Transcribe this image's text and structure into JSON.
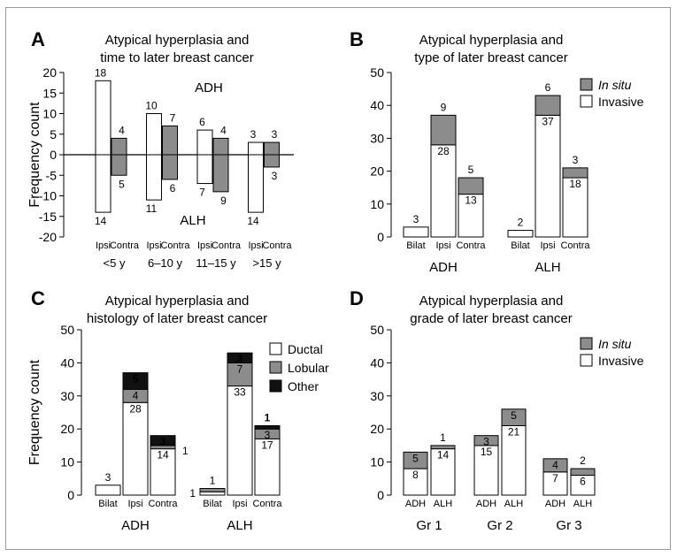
{
  "colors": {
    "invasive": "#ffffff",
    "in_situ": "#8c8c8c",
    "lobular": "#8c8c8c",
    "other": "#111111",
    "ductal": "#ffffff",
    "contra": "#8c8c8c",
    "ipsi": "#ffffff"
  },
  "chart_data": [
    {
      "panel": "A",
      "type": "bar",
      "title": [
        "Atypical hyperplasia and",
        "time to later breast cancer"
      ],
      "ylabel": "Frequency count",
      "ylim": [
        -20,
        20
      ],
      "yticks": [
        -20,
        -15,
        -10,
        -5,
        0,
        5,
        10,
        15,
        20
      ],
      "upper_label": "ADH",
      "lower_label": "ALH",
      "bar_labels": [
        "Ipsi",
        "Contra"
      ],
      "groups": [
        {
          "label": "<5 y",
          "ipsi_adh": 18,
          "contra_adh": 4,
          "ipsi_alh": 14,
          "contra_alh": 5
        },
        {
          "label": "6–10 y",
          "ipsi_adh": 10,
          "contra_adh": 7,
          "ipsi_alh": 11,
          "contra_alh": 6
        },
        {
          "label": "11–15 y",
          "ipsi_adh": 6,
          "contra_adh": 4,
          "ipsi_alh": 7,
          "contra_alh": 9
        },
        {
          "label": ">15 y",
          "ipsi_adh": 3,
          "contra_adh": 3,
          "ipsi_alh": 14,
          "contra_alh": 3
        }
      ]
    },
    {
      "panel": "B",
      "type": "bar",
      "stacked": true,
      "title": [
        "Atypical hyperplasia and",
        "type of later breast cancer"
      ],
      "ylim": [
        0,
        50
      ],
      "yticks": [
        0,
        10,
        20,
        30,
        40,
        50
      ],
      "legend_position": "top-right",
      "legend": [
        {
          "name": "In situ",
          "italic": true,
          "color_key": "in_situ"
        },
        {
          "name": "Invasive",
          "italic": false,
          "color_key": "invasive"
        }
      ],
      "groups": [
        {
          "label": "ADH",
          "bars": [
            {
              "label": "Bilat",
              "segments": [
                {
                  "series": "Invasive",
                  "value": 3,
                  "color_key": "invasive",
                  "label": "3",
                  "label_pos": "above"
                }
              ]
            },
            {
              "label": "Ipsi",
              "segments": [
                {
                  "series": "Invasive",
                  "value": 28,
                  "color_key": "invasive",
                  "label": "28",
                  "label_pos": "inside"
                },
                {
                  "series": "In situ",
                  "value": 9,
                  "color_key": "in_situ",
                  "label": "9",
                  "label_pos": "above"
                }
              ]
            },
            {
              "label": "Contra",
              "segments": [
                {
                  "series": "Invasive",
                  "value": 13,
                  "color_key": "invasive",
                  "label": "13",
                  "label_pos": "inside"
                },
                {
                  "series": "In situ",
                  "value": 5,
                  "color_key": "in_situ",
                  "label": "5",
                  "label_pos": "above"
                }
              ]
            }
          ]
        },
        {
          "label": "ALH",
          "bars": [
            {
              "label": "Bilat",
              "segments": [
                {
                  "series": "Invasive",
                  "value": 2,
                  "color_key": "invasive",
                  "label": "2",
                  "label_pos": "above"
                }
              ]
            },
            {
              "label": "Ipsi",
              "segments": [
                {
                  "series": "Invasive",
                  "value": 37,
                  "color_key": "invasive",
                  "label": "37",
                  "label_pos": "inside"
                },
                {
                  "series": "In situ",
                  "value": 6,
                  "color_key": "in_situ",
                  "label": "6",
                  "label_pos": "above"
                }
              ]
            },
            {
              "label": "Contra",
              "segments": [
                {
                  "series": "Invasive",
                  "value": 18,
                  "color_key": "invasive",
                  "label": "18",
                  "label_pos": "inside"
                },
                {
                  "series": "In situ",
                  "value": 3,
                  "color_key": "in_situ",
                  "label": "3",
                  "label_pos": "above"
                }
              ]
            }
          ]
        }
      ]
    },
    {
      "panel": "C",
      "type": "bar",
      "stacked": true,
      "title": [
        "Atypical hyperplasia and",
        "histology of later breast cancer"
      ],
      "ylabel": "Frequency count",
      "ylim": [
        0,
        50
      ],
      "yticks": [
        0,
        10,
        20,
        30,
        40,
        50
      ],
      "legend_position": "top-right",
      "legend": [
        {
          "name": "Ductal",
          "italic": false,
          "color_key": "ductal"
        },
        {
          "name": "Lobular",
          "italic": false,
          "color_key": "lobular"
        },
        {
          "name": "Other",
          "italic": false,
          "color_key": "other"
        }
      ],
      "groups": [
        {
          "label": "ADH",
          "bars": [
            {
              "label": "Bilat",
              "segments": [
                {
                  "series": "Ductal",
                  "value": 3,
                  "color_key": "ductal",
                  "label": "3",
                  "label_pos": "above"
                }
              ]
            },
            {
              "label": "Ipsi",
              "segments": [
                {
                  "series": "Ductal",
                  "value": 28,
                  "color_key": "ductal",
                  "label": "28",
                  "label_pos": "inside"
                },
                {
                  "series": "Lobular",
                  "value": 4,
                  "color_key": "lobular",
                  "label": "4",
                  "label_pos": "inside"
                },
                {
                  "series": "Other",
                  "value": 5,
                  "color_key": "other",
                  "label": "5",
                  "label_pos": "inside"
                }
              ]
            },
            {
              "label": "Contra",
              "segments": [
                {
                  "series": "Ductal",
                  "value": 14,
                  "color_key": "ductal",
                  "label": "14",
                  "label_pos": "inside"
                },
                {
                  "series": "Lobular",
                  "value": 1,
                  "color_key": "lobular",
                  "label": "1",
                  "label_pos": "right"
                },
                {
                  "series": "Other",
                  "value": 3,
                  "color_key": "other",
                  "label": "3",
                  "label_pos": "inside"
                }
              ]
            }
          ]
        },
        {
          "label": "ALH",
          "bars": [
            {
              "label": "Bilat",
              "segments": [
                {
                  "series": "Ductal",
                  "value": 1,
                  "color_key": "ductal",
                  "label": "1",
                  "label_pos": "left"
                },
                {
                  "series": "Lobular",
                  "value": 1,
                  "color_key": "lobular",
                  "label": "1",
                  "label_pos": "above"
                }
              ]
            },
            {
              "label": "Ipsi",
              "segments": [
                {
                  "series": "Ductal",
                  "value": 33,
                  "color_key": "ductal",
                  "label": "33",
                  "label_pos": "inside"
                },
                {
                  "series": "Lobular",
                  "value": 7,
                  "color_key": "lobular",
                  "label": "7",
                  "label_pos": "inside"
                },
                {
                  "series": "Other",
                  "value": 3,
                  "color_key": "other",
                  "label": "3",
                  "label_pos": "inside"
                }
              ]
            },
            {
              "label": "Contra",
              "segments": [
                {
                  "series": "Ductal",
                  "value": 17,
                  "color_key": "ductal",
                  "label": "17",
                  "label_pos": "inside"
                },
                {
                  "series": "Lobular",
                  "value": 3,
                  "color_key": "lobular",
                  "label": "3",
                  "label_pos": "inside"
                },
                {
                  "series": "Other",
                  "value": 1,
                  "color_key": "other",
                  "label": "1",
                  "label_pos": "above"
                }
              ]
            }
          ]
        }
      ]
    },
    {
      "panel": "D",
      "type": "bar",
      "stacked": true,
      "title": [
        "Atypical hyperplasia and",
        "grade of later breast cancer"
      ],
      "ylim": [
        0,
        50
      ],
      "yticks": [
        0,
        10,
        20,
        30,
        40,
        50
      ],
      "legend_position": "top-right",
      "legend": [
        {
          "name": "In situ",
          "italic": true,
          "color_key": "in_situ"
        },
        {
          "name": "Invasive",
          "italic": false,
          "color_key": "invasive"
        }
      ],
      "groups": [
        {
          "label": "Gr 1",
          "bars": [
            {
              "label": "ADH",
              "segments": [
                {
                  "series": "Invasive",
                  "value": 8,
                  "color_key": "invasive",
                  "label": "8",
                  "label_pos": "inside"
                },
                {
                  "series": "In situ",
                  "value": 5,
                  "color_key": "in_situ",
                  "label": "5",
                  "label_pos": "inside"
                }
              ]
            },
            {
              "label": "ALH",
              "segments": [
                {
                  "series": "Invasive",
                  "value": 14,
                  "color_key": "invasive",
                  "label": "14",
                  "label_pos": "inside"
                },
                {
                  "series": "In situ",
                  "value": 1,
                  "color_key": "in_situ",
                  "label": "1",
                  "label_pos": "above"
                }
              ]
            }
          ]
        },
        {
          "label": "Gr 2",
          "bars": [
            {
              "label": "ADH",
              "segments": [
                {
                  "series": "Invasive",
                  "value": 15,
                  "color_key": "invasive",
                  "label": "15",
                  "label_pos": "inside"
                },
                {
                  "series": "In situ",
                  "value": 3,
                  "color_key": "in_situ",
                  "label": "3",
                  "label_pos": "inside"
                }
              ]
            },
            {
              "label": "ALH",
              "segments": [
                {
                  "series": "Invasive",
                  "value": 21,
                  "color_key": "invasive",
                  "label": "21",
                  "label_pos": "inside"
                },
                {
                  "series": "In situ",
                  "value": 5,
                  "color_key": "in_situ",
                  "label": "5",
                  "label_pos": "inside"
                }
              ]
            }
          ]
        },
        {
          "label": "Gr 3",
          "bars": [
            {
              "label": "ADH",
              "segments": [
                {
                  "series": "Invasive",
                  "value": 7,
                  "color_key": "invasive",
                  "label": "7",
                  "label_pos": "inside"
                },
                {
                  "series": "In situ",
                  "value": 4,
                  "color_key": "in_situ",
                  "label": "4",
                  "label_pos": "inside"
                }
              ]
            },
            {
              "label": "ALH",
              "segments": [
                {
                  "series": "Invasive",
                  "value": 6,
                  "color_key": "invasive",
                  "label": "6",
                  "label_pos": "inside"
                },
                {
                  "series": "In situ",
                  "value": 2,
                  "color_key": "in_situ",
                  "label": "2",
                  "label_pos": "above"
                }
              ]
            }
          ]
        }
      ]
    }
  ]
}
